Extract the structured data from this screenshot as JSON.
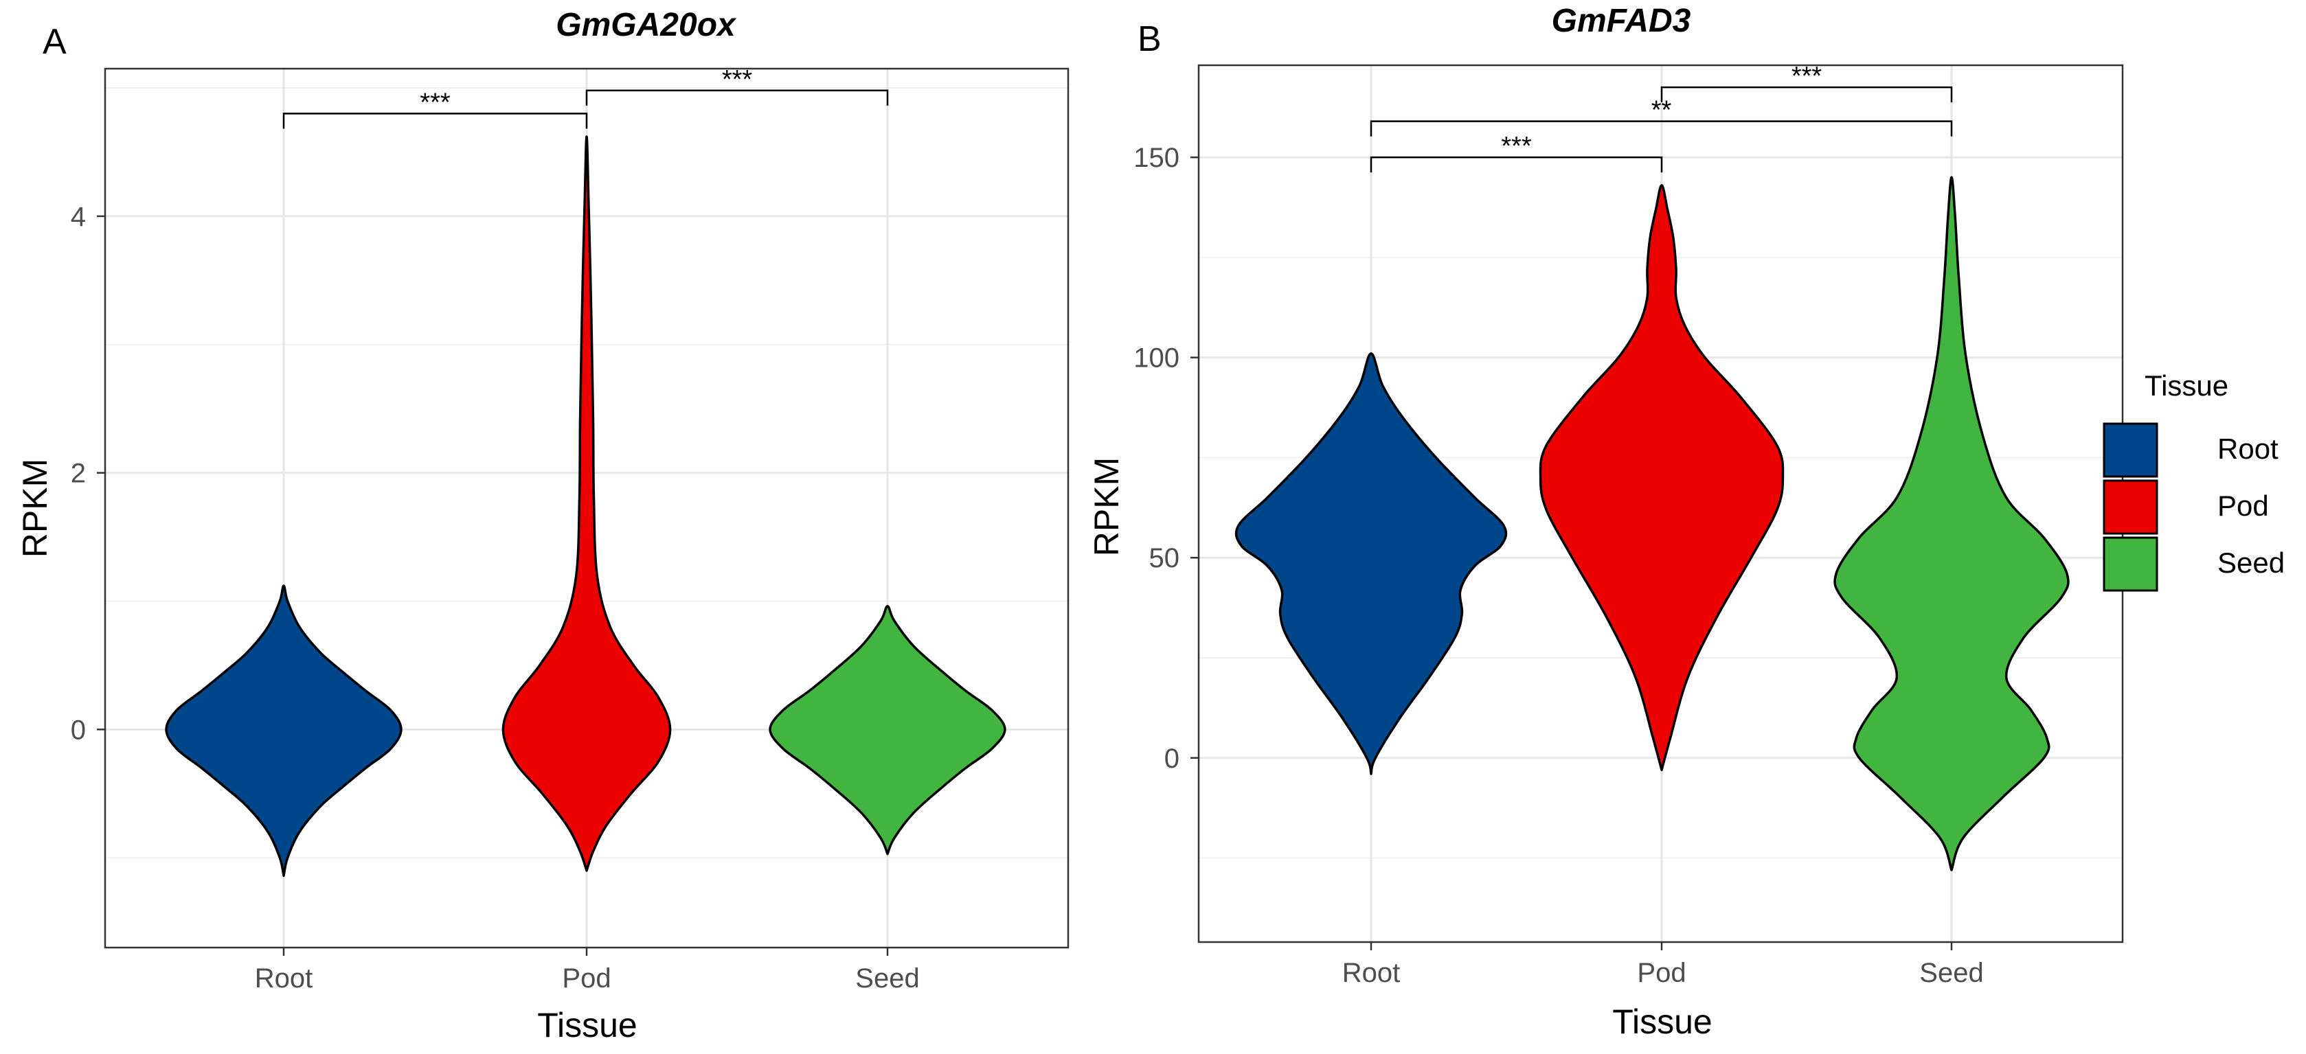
{
  "chart_data": [
    {
      "panel": "A",
      "type": "violin",
      "title": "GmGA20ox",
      "xlabel": "Tissue",
      "ylabel": "RPKM",
      "categories": [
        "Root",
        "Pod",
        "Seed"
      ],
      "yticks": [
        0,
        2,
        4
      ],
      "ylim": [
        -1.7,
        5.15
      ],
      "colors": [
        "#00468B",
        "#ED0000",
        "#42B540"
      ],
      "violins": [
        {
          "category": "Root",
          "ymin": -1.14,
          "ymax": 1.12,
          "profile": [
            [
              -1.14,
              0
            ],
            [
              -1.0,
              0.03
            ],
            [
              -0.8,
              0.12
            ],
            [
              -0.6,
              0.28
            ],
            [
              -0.45,
              0.45
            ],
            [
              -0.3,
              0.63
            ],
            [
              -0.15,
              0.82
            ],
            [
              0,
              0.9
            ],
            [
              0.15,
              0.82
            ],
            [
              0.3,
              0.63
            ],
            [
              0.45,
              0.45
            ],
            [
              0.6,
              0.28
            ],
            [
              0.8,
              0.12
            ],
            [
              1.0,
              0.03
            ],
            [
              1.12,
              0
            ]
          ]
        },
        {
          "category": "Pod",
          "ymin": -1.1,
          "ymax": 4.62,
          "profile": [
            [
              -1.1,
              0
            ],
            [
              -0.95,
              0.05
            ],
            [
              -0.75,
              0.15
            ],
            [
              -0.5,
              0.34
            ],
            [
              -0.25,
              0.55
            ],
            [
              0,
              0.64
            ],
            [
              0.25,
              0.55
            ],
            [
              0.5,
              0.36
            ],
            [
              0.8,
              0.18
            ],
            [
              1.2,
              0.08
            ],
            [
              1.8,
              0.055
            ],
            [
              2.4,
              0.05
            ],
            [
              3.0,
              0.04
            ],
            [
              3.6,
              0.028
            ],
            [
              4.1,
              0.015
            ],
            [
              4.62,
              0
            ]
          ]
        },
        {
          "category": "Seed",
          "ymin": -0.97,
          "ymax": 0.96,
          "profile": [
            [
              -0.97,
              0
            ],
            [
              -0.85,
              0.05
            ],
            [
              -0.65,
              0.2
            ],
            [
              -0.45,
              0.42
            ],
            [
              -0.3,
              0.6
            ],
            [
              -0.15,
              0.8
            ],
            [
              0,
              0.9
            ],
            [
              0.15,
              0.8
            ],
            [
              0.3,
              0.6
            ],
            [
              0.45,
              0.42
            ],
            [
              0.65,
              0.2
            ],
            [
              0.85,
              0.05
            ],
            [
              0.96,
              0
            ]
          ]
        }
      ],
      "comparisons": [
        {
          "from": "Root",
          "to": "Pod",
          "label": "***",
          "y": 4.8
        },
        {
          "from": "Pod",
          "to": "Seed",
          "label": "***",
          "y": 4.98
        }
      ]
    },
    {
      "panel": "B",
      "type": "violin",
      "title": "GmFAD3",
      "xlabel": "Tissue",
      "ylabel": "RPKM",
      "categories": [
        "Root",
        "Pod",
        "Seed"
      ],
      "yticks": [
        0,
        50,
        100,
        150
      ],
      "ylim": [
        -46,
        173
      ],
      "colors": [
        "#00468B",
        "#ED0000",
        "#42B540"
      ],
      "violins": [
        {
          "category": "Root",
          "ymin": -4,
          "ymax": 101,
          "profile": [
            [
              -4,
              0
            ],
            [
              0,
              0.03
            ],
            [
              10,
              0.2
            ],
            [
              20,
              0.4
            ],
            [
              30,
              0.58
            ],
            [
              36,
              0.63
            ],
            [
              42,
              0.62
            ],
            [
              48,
              0.72
            ],
            [
              53,
              0.9
            ],
            [
              58,
              0.92
            ],
            [
              65,
              0.72
            ],
            [
              75,
              0.45
            ],
            [
              85,
              0.22
            ],
            [
              93,
              0.08
            ],
            [
              101,
              0
            ]
          ]
        },
        {
          "category": "Pod",
          "ymin": -3,
          "ymax": 143,
          "profile": [
            [
              -3,
              0
            ],
            [
              5,
              0.06
            ],
            [
              20,
              0.18
            ],
            [
              35,
              0.38
            ],
            [
              50,
              0.62
            ],
            [
              62,
              0.8
            ],
            [
              70,
              0.84
            ],
            [
              78,
              0.8
            ],
            [
              90,
              0.55
            ],
            [
              100,
              0.3
            ],
            [
              108,
              0.16
            ],
            [
              115,
              0.1
            ],
            [
              122,
              0.1
            ],
            [
              130,
              0.08
            ],
            [
              137,
              0.04
            ],
            [
              143,
              0
            ]
          ]
        },
        {
          "category": "Seed",
          "ymin": -28,
          "ymax": 145,
          "profile": [
            [
              -28,
              0
            ],
            [
              -20,
              0.08
            ],
            [
              -10,
              0.35
            ],
            [
              0,
              0.64
            ],
            [
              5,
              0.66
            ],
            [
              12,
              0.55
            ],
            [
              20,
              0.38
            ],
            [
              30,
              0.5
            ],
            [
              40,
              0.76
            ],
            [
              46,
              0.8
            ],
            [
              55,
              0.64
            ],
            [
              65,
              0.38
            ],
            [
              80,
              0.22
            ],
            [
              100,
              0.1
            ],
            [
              120,
              0.05
            ],
            [
              135,
              0.025
            ],
            [
              145,
              0
            ]
          ]
        }
      ],
      "comparisons": [
        {
          "from": "Root",
          "to": "Pod",
          "label": "***",
          "y": 150
        },
        {
          "from": "Root",
          "to": "Seed",
          "label": "**",
          "y": 159
        },
        {
          "from": "Pod",
          "to": "Seed",
          "label": "***",
          "y": 167.5
        }
      ]
    }
  ],
  "labels": {
    "panel_a": "A",
    "panel_b": "B"
  },
  "legend": {
    "title": "Tissue",
    "items": [
      {
        "label": "Root",
        "color": "#00468B"
      },
      {
        "label": "Pod",
        "color": "#ED0000"
      },
      {
        "label": "Seed",
        "color": "#42B540"
      }
    ]
  }
}
